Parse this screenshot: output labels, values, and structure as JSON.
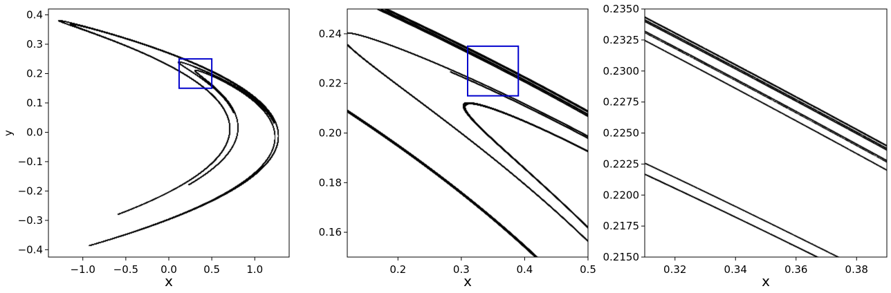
{
  "chart_data": [
    {
      "type": "scatter",
      "xlabel": "x",
      "ylabel": "y",
      "xlim": [
        -1.4,
        1.4
      ],
      "ylim": [
        -0.425,
        0.42
      ],
      "xticks": [
        "−1.0",
        "−0.5",
        "0.0",
        "0.5",
        "1.0"
      ],
      "xtick_values": [
        -1.0,
        -0.5,
        0.0,
        0.5,
        1.0
      ],
      "yticks": [
        "−0.4",
        "−0.3",
        "−0.2",
        "−0.1",
        "0.0",
        "0.1",
        "0.2",
        "0.3",
        "0.4"
      ],
      "ytick_values": [
        -0.4,
        -0.3,
        -0.2,
        -0.1,
        0.0,
        0.1,
        0.2,
        0.3,
        0.4
      ],
      "series_color": "#000000",
      "zoom_box": {
        "x": [
          0.12,
          0.5
        ],
        "y": [
          0.15,
          0.25
        ],
        "color": "#0000cc"
      }
    },
    {
      "type": "scatter",
      "xlabel": "x",
      "ylabel": "",
      "xlim": [
        0.12,
        0.5
      ],
      "ylim": [
        0.15,
        0.25
      ],
      "xticks": [
        "0.2",
        "0.3",
        "0.4",
        "0.5"
      ],
      "xtick_values": [
        0.2,
        0.3,
        0.4,
        0.5
      ],
      "yticks": [
        "0.16",
        "0.18",
        "0.20",
        "0.22",
        "0.24"
      ],
      "ytick_values": [
        0.16,
        0.18,
        0.2,
        0.22,
        0.24
      ],
      "series_color": "#000000",
      "zoom_box": {
        "x": [
          0.31,
          0.39
        ],
        "y": [
          0.215,
          0.235
        ],
        "color": "#0000cc"
      }
    },
    {
      "type": "scatter",
      "xlabel": "x",
      "ylabel": "",
      "xlim": [
        0.31,
        0.39
      ],
      "ylim": [
        0.215,
        0.235
      ],
      "xticks": [
        "0.32",
        "0.34",
        "0.36",
        "0.38"
      ],
      "xtick_values": [
        0.32,
        0.34,
        0.36,
        0.38
      ],
      "yticks": [
        "0.2150",
        "0.2175",
        "0.2200",
        "0.2225",
        "0.2250",
        "0.2275",
        "0.2300",
        "0.2325",
        "0.2350"
      ],
      "ytick_values": [
        0.215,
        0.2175,
        0.22,
        0.2225,
        0.225,
        0.2275,
        0.23,
        0.2325,
        0.235
      ],
      "series_color": "#000000"
    }
  ]
}
